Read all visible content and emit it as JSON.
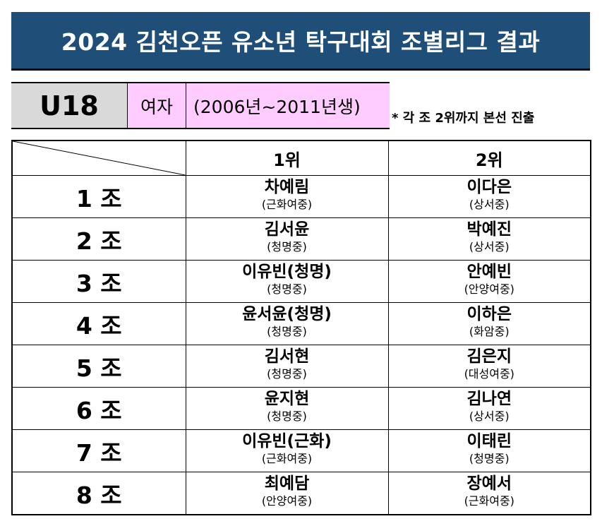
{
  "title": "2024 김천오픈 유소년 탁구대회 조별리그 결과",
  "category": {
    "age": "U18",
    "gender": "여자",
    "years": "(2006년~2011년생)"
  },
  "note": "* 각 조 2위까지 본선 진출",
  "table": {
    "headers": [
      "1위",
      "2위"
    ],
    "rows": [
      {
        "group": "1 조",
        "first": {
          "name": "차예림",
          "school": "(근화여중)"
        },
        "second": {
          "name": "이다은",
          "school": "(상서중)"
        }
      },
      {
        "group": "2 조",
        "first": {
          "name": "김서윤",
          "school": "(청명중)"
        },
        "second": {
          "name": "박예진",
          "school": "(상서중)"
        }
      },
      {
        "group": "3 조",
        "first": {
          "name": "이유빈(청명)",
          "school": "(청명중)"
        },
        "second": {
          "name": "안예빈",
          "school": "(안양여중)"
        }
      },
      {
        "group": "4 조",
        "first": {
          "name": "윤서윤(청명)",
          "school": "(청명중)"
        },
        "second": {
          "name": "이하은",
          "school": "(화암중)"
        }
      },
      {
        "group": "5 조",
        "first": {
          "name": "김서현",
          "school": "(청명중)"
        },
        "second": {
          "name": "김은지",
          "school": "(대성여중)"
        }
      },
      {
        "group": "6 조",
        "first": {
          "name": "윤지현",
          "school": "(청명중)"
        },
        "second": {
          "name": "김나연",
          "school": "(상서중)"
        }
      },
      {
        "group": "7 조",
        "first": {
          "name": "이유빈(근화)",
          "school": "(근화여중)"
        },
        "second": {
          "name": "이태린",
          "school": "(청명중)"
        }
      },
      {
        "group": "8 조",
        "first": {
          "name": "최예담",
          "school": "(안양여중)"
        },
        "second": {
          "name": "장예서",
          "school": "(근화여중)"
        }
      }
    ]
  }
}
